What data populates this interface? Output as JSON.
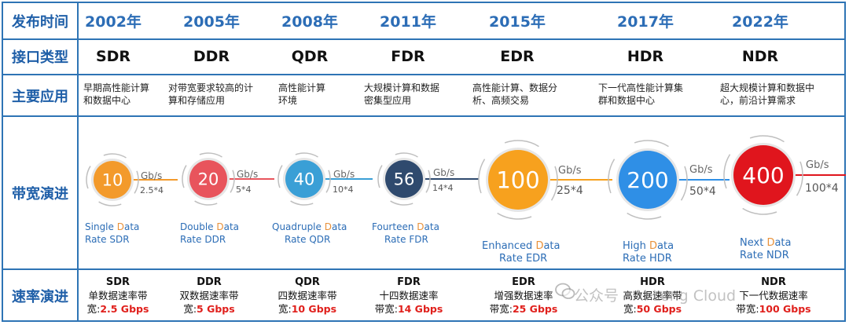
{
  "row_labels": {
    "release_time": "发布时间",
    "interface_type": "接口类型",
    "main_application": "主要应用",
    "bandwidth_evolution": "带宽演进",
    "rate_evolution": "速率演进"
  },
  "columns": [
    {
      "year": "2002年",
      "type": "SDR",
      "app": "早期高性能计算和数据中心",
      "bw": "10",
      "unit": "Gb/s",
      "mult": "2.5*4",
      "full": [
        [
          "S",
          "ingle "
        ],
        [
          "D",
          "ata"
        ],
        [
          "R",
          "ate "
        ],
        [
          "SDR",
          ""
        ]
      ],
      "speed_name": "SDR",
      "speed_desc1": "单数据速率带",
      "speed_desc2": "宽:",
      "speed_val": "2.5 Gbps",
      "color": "#f39a2b"
    },
    {
      "year": "2005年",
      "type": "DDR",
      "app": "对带宽要求较高的计算和存储应用",
      "bw": "20",
      "unit": "Gb/s",
      "mult": "5*4",
      "full": [
        [
          "D",
          "ouble "
        ],
        [
          "D",
          "ata"
        ],
        [
          "R",
          "ate "
        ],
        [
          "DDR",
          ""
        ]
      ],
      "speed_name": "DDR",
      "speed_desc1": "双数据速率带",
      "speed_desc2": "宽:",
      "speed_val": "5 Gbps",
      "color": "#e8545c"
    },
    {
      "year": "2008年",
      "type": "QDR",
      "app": "高性能计算环境",
      "bw": "40",
      "unit": "Gb/s",
      "mult": "10*4",
      "full": [
        [
          "Q",
          "uadruple "
        ],
        [
          "D",
          "ata"
        ],
        [
          "R",
          "ate "
        ],
        [
          "QDR",
          ""
        ]
      ],
      "speed_name": "QDR",
      "speed_desc1": "四数据速率带",
      "speed_desc2": "宽:",
      "speed_val": "10 Gbps",
      "color": "#3a9fd6"
    },
    {
      "year": "2011年",
      "type": "FDR",
      "app": "大规模计算和数据密集型应用",
      "bw": "56",
      "unit": "Gb/s",
      "mult": "14*4",
      "full": [
        [
          "F",
          "ourteen "
        ],
        [
          "D",
          "ata"
        ],
        [
          "R",
          "ate "
        ],
        [
          "FDR",
          ""
        ]
      ],
      "speed_name": "FDR",
      "speed_desc1": "十四数据速率",
      "speed_desc2": "带宽:",
      "speed_val": "14 Gbps",
      "color": "#2f4a6e"
    },
    {
      "year": "2015年",
      "type": "EDR",
      "app": "高性能计算、数据分析、高频交易",
      "bw": "100",
      "unit": "Gb/s",
      "mult": "25*4",
      "full": [
        [
          "E",
          "nhanced "
        ],
        [
          "D",
          "ata"
        ],
        [
          "R",
          "ate "
        ],
        [
          "EDR",
          ""
        ]
      ],
      "speed_name": "EDR",
      "speed_desc1": "增强数据速率",
      "speed_desc2": "带宽:",
      "speed_val": "25 Gbps",
      "color": "#f7a11e"
    },
    {
      "year": "2017年",
      "type": "HDR",
      "app": "下一代高性能计算集群和数据中心",
      "bw": "200",
      "unit": "Gb/s",
      "mult": "50*4",
      "full": [
        [
          "H",
          "igh "
        ],
        [
          "D",
          "ata"
        ],
        [
          "R",
          "ate "
        ],
        [
          "HDR",
          ""
        ]
      ],
      "speed_name": "HDR",
      "speed_desc1": "高数据速率带",
      "speed_desc2": "宽:",
      "speed_val": "50 Gbps",
      "color": "#2f8fe6"
    },
    {
      "year": "2022年",
      "type": "NDR",
      "app": "超大规模计算和数据中心，前沿计算需求",
      "bw": "400",
      "unit": "Gb/s",
      "mult": "100*4",
      "full": [
        [
          "N",
          "ext "
        ],
        [
          "D",
          "ata"
        ],
        [
          "R",
          "ate "
        ],
        [
          "NDR",
          ""
        ]
      ],
      "speed_name": "NDR",
      "speed_desc1": "下一代数据速率",
      "speed_desc2": "带宽:",
      "speed_val": "100 Gbps",
      "color": "#e0151d"
    }
  ],
  "watermark": "公众号 · AI Long Cloud",
  "colors": {
    "border": "#2e74b5",
    "label": "#1f5fa8",
    "value_red": "#e0201c"
  }
}
